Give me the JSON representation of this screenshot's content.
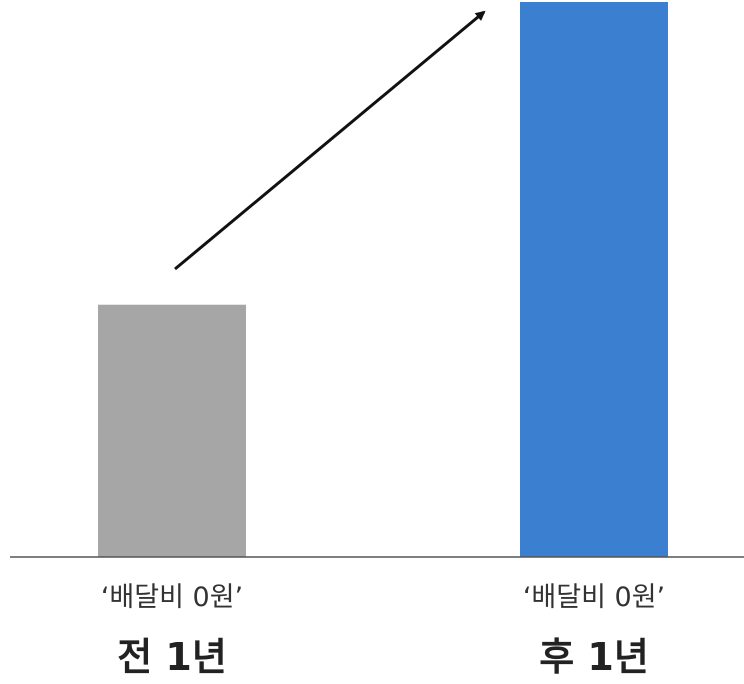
{
  "chart_data": {
    "type": "bar",
    "title": "",
    "xlabel": "",
    "ylabel": "",
    "categories": [
      {
        "line1": "‘배달비 0원’",
        "line2": "전 1년"
      },
      {
        "line1": "‘배달비 0원’",
        "line2": "후 1년"
      }
    ],
    "values": [
      1,
      2.2
    ],
    "colors": [
      "#a6a6a6",
      "#3a7fd0"
    ],
    "ylim": [
      0,
      2.2
    ],
    "grid": false,
    "axis_color": "#555555",
    "annotations": [
      {
        "type": "arrow",
        "from_category": 0,
        "to_category": 1,
        "color": "#111111"
      }
    ]
  }
}
